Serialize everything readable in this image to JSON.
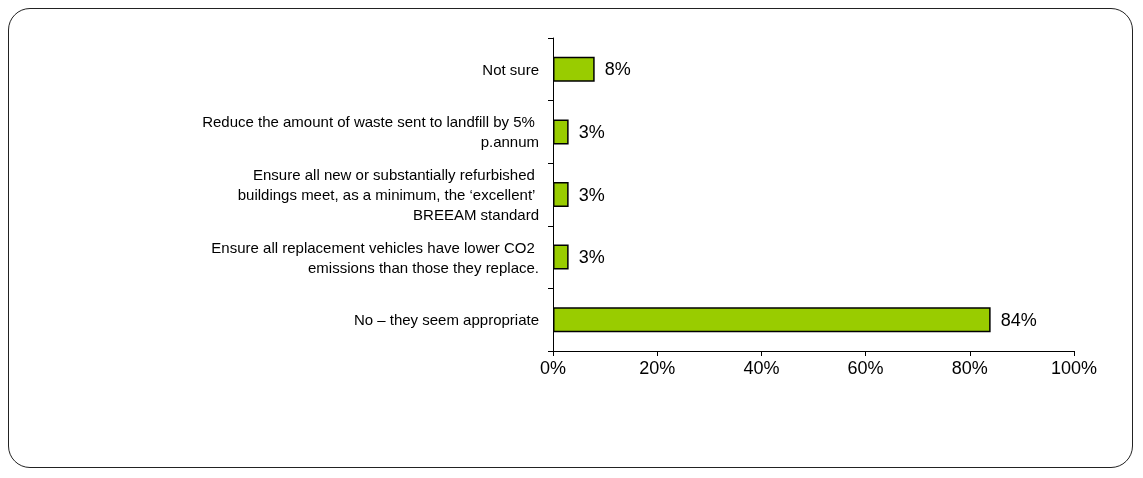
{
  "chart_data": {
    "type": "bar",
    "orientation": "horizontal",
    "categories": [
      "Not sure",
      "Reduce the amount of waste sent to landfill by 5% p.annum",
      "Ensure all new or substantially refurbished buildings meet, as a minimum, the ‘excellent’ BREEAM standard",
      "Ensure all replacement vehicles have lower CO2 emissions than those they replace.",
      "No – they seem appropriate"
    ],
    "values": [
      8,
      3,
      3,
      3,
      84
    ],
    "value_labels": [
      "8%",
      "3%",
      "3%",
      "3%",
      "84%"
    ],
    "color": "#99cc00",
    "xlim": [
      0,
      100
    ],
    "xticks": [
      {
        "value": 0,
        "label": "0%"
      },
      {
        "value": 20,
        "label": "20%"
      },
      {
        "value": 40,
        "label": "40%"
      },
      {
        "value": 60,
        "label": "60%"
      },
      {
        "value": 80,
        "label": "80%"
      },
      {
        "value": 100,
        "label": "100%"
      }
    ],
    "grid": false
  }
}
